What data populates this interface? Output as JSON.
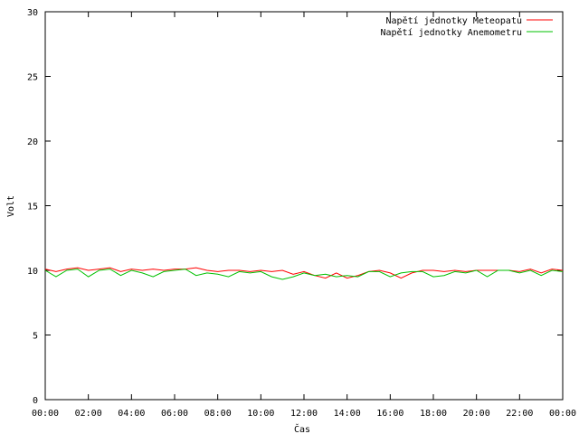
{
  "chart_data": {
    "type": "line",
    "title": "",
    "xlabel": "Čas",
    "ylabel": "Volt",
    "ylim": [
      0,
      30
    ],
    "xlim": [
      "00:00",
      "24:00"
    ],
    "yticks": [
      0,
      5,
      10,
      15,
      20,
      25,
      30
    ],
    "xticks": [
      "00:00",
      "02:00",
      "04:00",
      "06:00",
      "08:00",
      "10:00",
      "12:00",
      "14:00",
      "16:00",
      "18:00",
      "20:00",
      "22:00",
      "00:00"
    ],
    "grid": false,
    "legend": "top-right",
    "series": [
      {
        "name": "Napětí jednotky Meteopatu",
        "color": "#ff0000",
        "x": [
          0,
          0.5,
          1,
          1.5,
          2,
          2.5,
          3,
          3.5,
          4,
          4.5,
          5,
          5.5,
          6,
          6.5,
          7,
          7.5,
          8,
          8.5,
          9,
          9.5,
          10,
          10.5,
          11,
          11.5,
          12,
          12.5,
          13,
          13.5,
          14,
          14.5,
          15,
          15.5,
          16,
          16.5,
          17,
          17.5,
          18,
          18.5,
          19,
          19.5,
          20,
          20.5,
          21,
          21.5,
          22,
          22.5,
          23,
          23.5,
          24
        ],
        "values": [
          10.1,
          9.9,
          10.1,
          10.2,
          10.0,
          10.1,
          10.2,
          9.9,
          10.1,
          10.0,
          10.1,
          10.0,
          10.1,
          10.1,
          10.2,
          10.0,
          9.9,
          10.0,
          10.0,
          9.9,
          10.0,
          9.9,
          10.0,
          9.7,
          9.9,
          9.6,
          9.4,
          9.8,
          9.4,
          9.6,
          9.9,
          10.0,
          9.8,
          9.4,
          9.8,
          10.0,
          10.0,
          9.9,
          10.0,
          9.9,
          10.0,
          10.0,
          10.0,
          10.0,
          9.9,
          10.1,
          9.8,
          10.1,
          10.0
        ]
      },
      {
        "name": "Napětí jednotky Anemometru",
        "color": "#00c000",
        "x": [
          0,
          0.5,
          1,
          1.5,
          2,
          2.5,
          3,
          3.5,
          4,
          4.5,
          5,
          5.5,
          6,
          6.5,
          7,
          7.5,
          8,
          8.5,
          9,
          9.5,
          10,
          10.5,
          11,
          11.5,
          12,
          12.5,
          13,
          13.5,
          14,
          14.5,
          15,
          15.5,
          16,
          16.5,
          17,
          17.5,
          18,
          18.5,
          19,
          19.5,
          20,
          20.5,
          21,
          21.5,
          22,
          22.5,
          23,
          23.5,
          24
        ],
        "values": [
          10.0,
          9.5,
          10.0,
          10.1,
          9.5,
          10.0,
          10.1,
          9.6,
          10.0,
          9.8,
          9.5,
          9.9,
          10.0,
          10.1,
          9.6,
          9.8,
          9.7,
          9.5,
          9.9,
          9.8,
          9.9,
          9.5,
          9.3,
          9.5,
          9.8,
          9.6,
          9.7,
          9.5,
          9.6,
          9.5,
          9.9,
          9.9,
          9.5,
          9.8,
          9.9,
          9.9,
          9.5,
          9.6,
          9.9,
          9.8,
          10.0,
          9.5,
          10.0,
          10.0,
          9.8,
          10.0,
          9.6,
          10.0,
          9.9
        ]
      }
    ]
  }
}
